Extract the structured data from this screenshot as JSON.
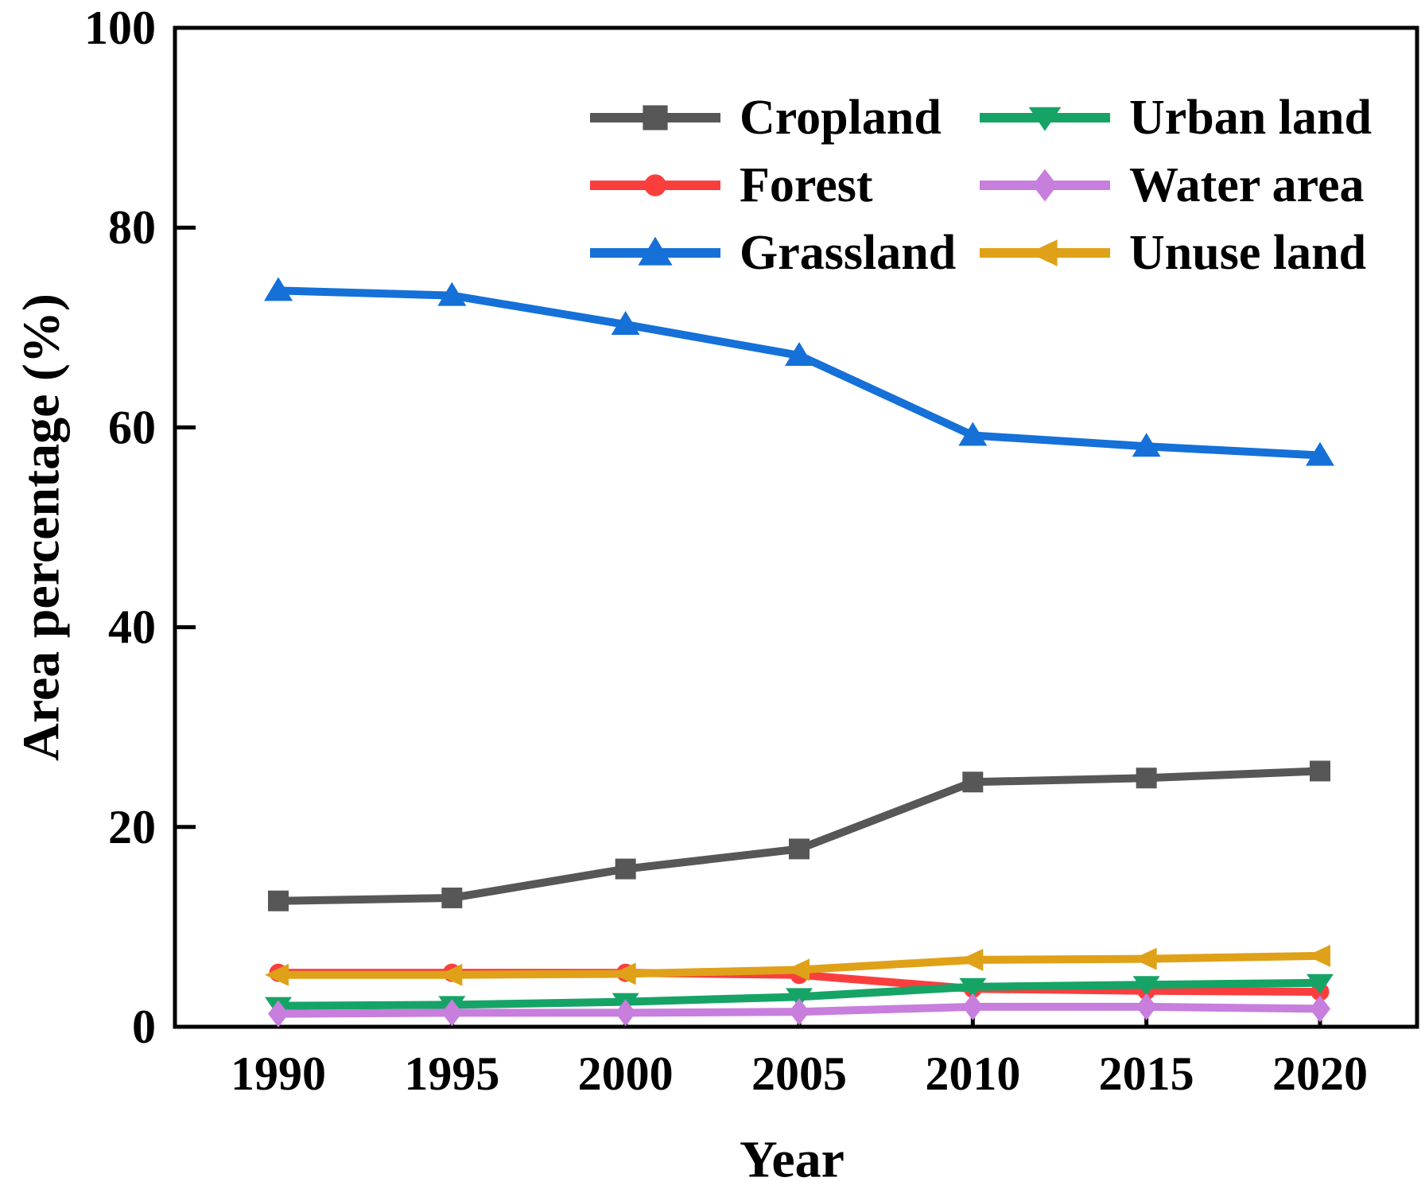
{
  "chart_data": {
    "type": "line",
    "title": "",
    "xlabel": "Year",
    "ylabel": "Area percentage (%)",
    "x": [
      1990,
      1995,
      2000,
      2005,
      2010,
      2015,
      2020
    ],
    "x_tick_labels": [
      "1990",
      "1995",
      "2000",
      "2005",
      "2010",
      "2015",
      "2020"
    ],
    "y_ticks": [
      0,
      20,
      40,
      60,
      80,
      100
    ],
    "y_tick_labels": [
      "0",
      "20",
      "40",
      "60",
      "80",
      "100"
    ],
    "ylim": [
      0,
      100
    ],
    "grid": false,
    "legend_position": "upper center, two columns, inside plot",
    "axis_color": "#000000",
    "background_color": "#ffffff",
    "series": [
      {
        "name": "Cropland",
        "color": "#575757",
        "marker": "square",
        "values": [
          12.6,
          12.9,
          15.8,
          17.8,
          24.5,
          24.9,
          25.6
        ]
      },
      {
        "name": "Forest",
        "color": "#fa3e3e",
        "marker": "circle",
        "values": [
          5.4,
          5.4,
          5.4,
          5.2,
          3.8,
          3.6,
          3.5
        ]
      },
      {
        "name": "Grassland",
        "color": "#1570d8",
        "marker": "triangle-up",
        "values": [
          73.7,
          73.2,
          70.3,
          67.2,
          59.2,
          58.1,
          57.2
        ]
      },
      {
        "name": "Urban land",
        "color": "#16a466",
        "marker": "triangle-down",
        "values": [
          2.1,
          2.2,
          2.5,
          3.0,
          4.0,
          4.2,
          4.4
        ]
      },
      {
        "name": "Water area",
        "color": "#c77edd",
        "marker": "diamond",
        "values": [
          1.3,
          1.4,
          1.4,
          1.5,
          2.0,
          2.0,
          1.8
        ]
      },
      {
        "name": "Unuse land",
        "color": "#dfa118",
        "marker": "triangle-left",
        "values": [
          5.2,
          5.2,
          5.3,
          5.7,
          6.7,
          6.8,
          7.1
        ]
      }
    ]
  }
}
